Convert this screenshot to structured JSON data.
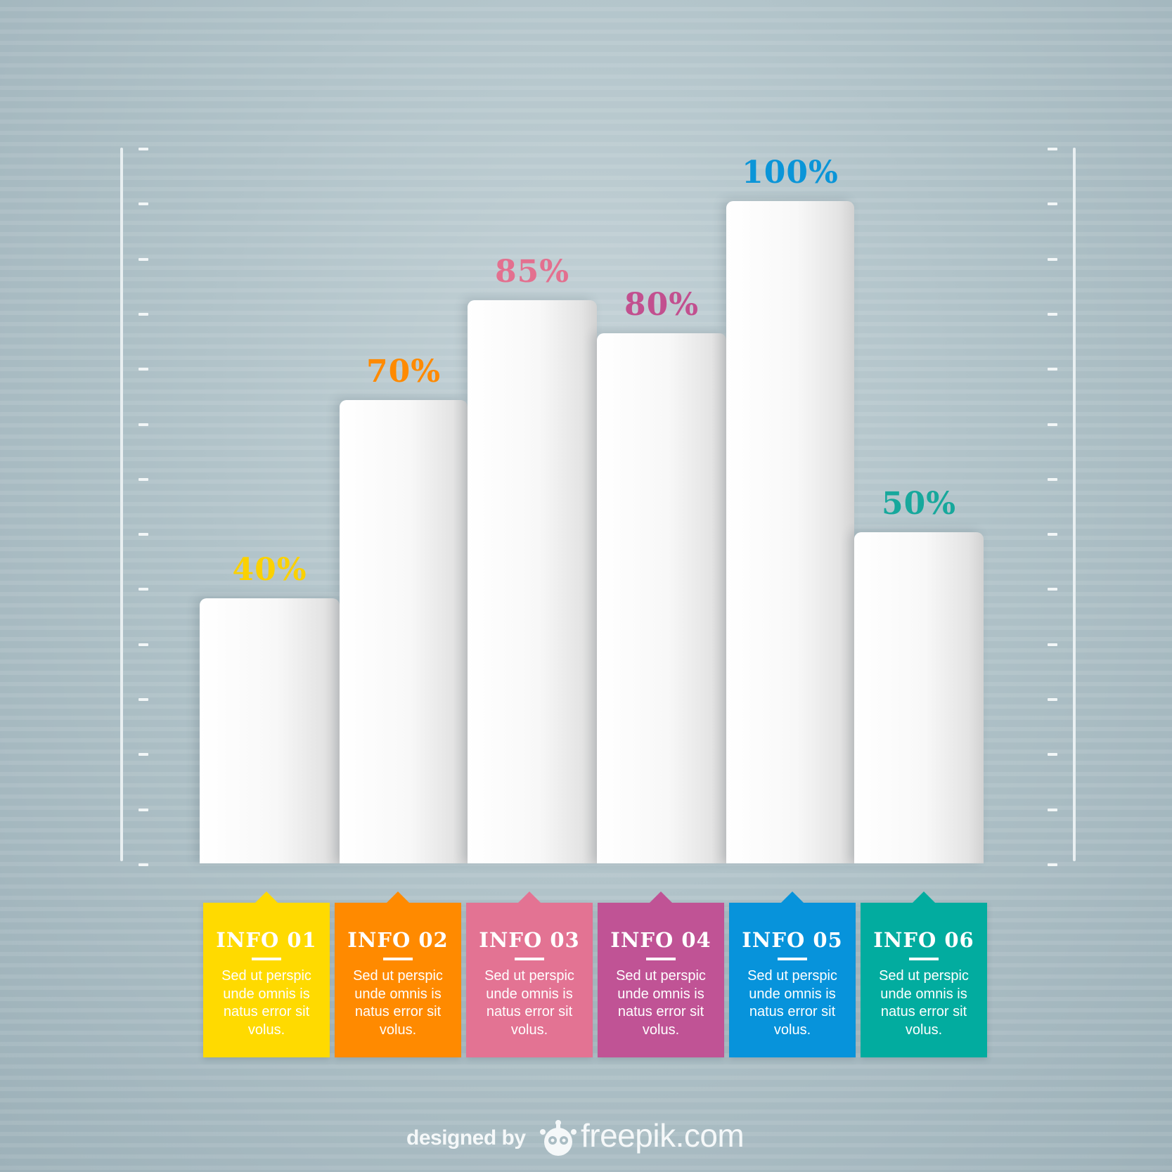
{
  "chart_data": {
    "type": "bar",
    "categories": [
      "INFO 01",
      "INFO 02",
      "INFO 03",
      "INFO 04",
      "INFO 05",
      "INFO 06"
    ],
    "values": [
      40,
      70,
      85,
      80,
      100,
      50
    ],
    "data_labels": [
      "40%",
      "70%",
      "85%",
      "80%",
      "100%",
      "50%"
    ],
    "label_colors": [
      "#fbd100",
      "#ff8a00",
      "#e3708f",
      "#c2508f",
      "#0a95d8",
      "#17a89c"
    ],
    "ylim": [
      0,
      100
    ],
    "grid": false,
    "legend": "none"
  },
  "cards": [
    {
      "title": "INFO 01",
      "text": "Sed ut perspic unde omnis is natus error sit volus.",
      "color": "#ffda00"
    },
    {
      "title": "INFO 02",
      "text": "Sed ut perspic unde omnis is natus error sit volus.",
      "color": "#ff8a00"
    },
    {
      "title": "INFO 03",
      "text": "Sed ut perspic unde omnis is natus error sit volus.",
      "color": "#e37393"
    },
    {
      "title": "INFO 04",
      "text": "Sed ut perspic unde omnis is natus error sit volus.",
      "color": "#c05395"
    },
    {
      "title": "INFO 05",
      "text": "Sed ut perspic unde omnis is natus error sit volus.",
      "color": "#0793db"
    },
    {
      "title": "INFO 06",
      "text": "Sed ut perspic unde omnis is natus error sit volus.",
      "color": "#02ac9f"
    }
  ],
  "credit": {
    "prefix": "designed by",
    "brand": "freepik.com",
    "logo_icon": "freepik-mascot-icon"
  }
}
